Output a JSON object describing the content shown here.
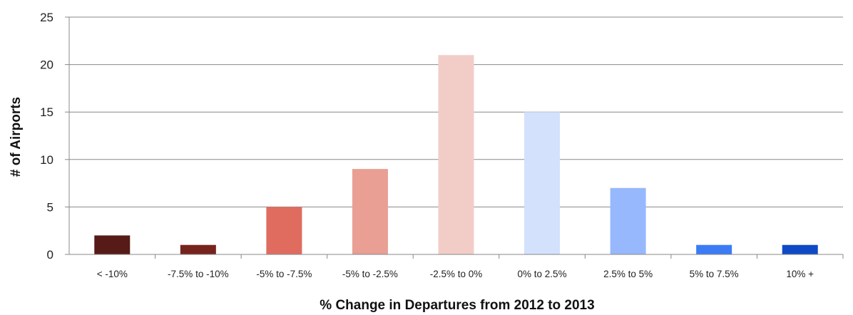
{
  "chart_data": {
    "type": "bar",
    "title": "",
    "xlabel": "% Change in Departures from 2012 to 2013",
    "ylabel": "# of Airports",
    "ylim": [
      0,
      25
    ],
    "yticks": [
      0,
      5,
      10,
      15,
      20,
      25
    ],
    "grid": "horizontal",
    "legend": "none",
    "categories": [
      "< -10%",
      "-7.5% to -10%",
      "-5% to -7.5%",
      "-5% to -2.5%",
      "-2.5% to 0%",
      "0% to 2.5%",
      "2.5% to 5%",
      "5% to 7.5%",
      "10% +"
    ],
    "values": [
      2,
      1,
      5,
      9,
      21,
      15,
      7,
      1,
      1
    ],
    "colors": [
      "#561b17",
      "#76231d",
      "#e06c5f",
      "#e99f94",
      "#f2cdc7",
      "#d3e1fc",
      "#97b8fd",
      "#3b7cf5",
      "#0f49c5"
    ]
  }
}
